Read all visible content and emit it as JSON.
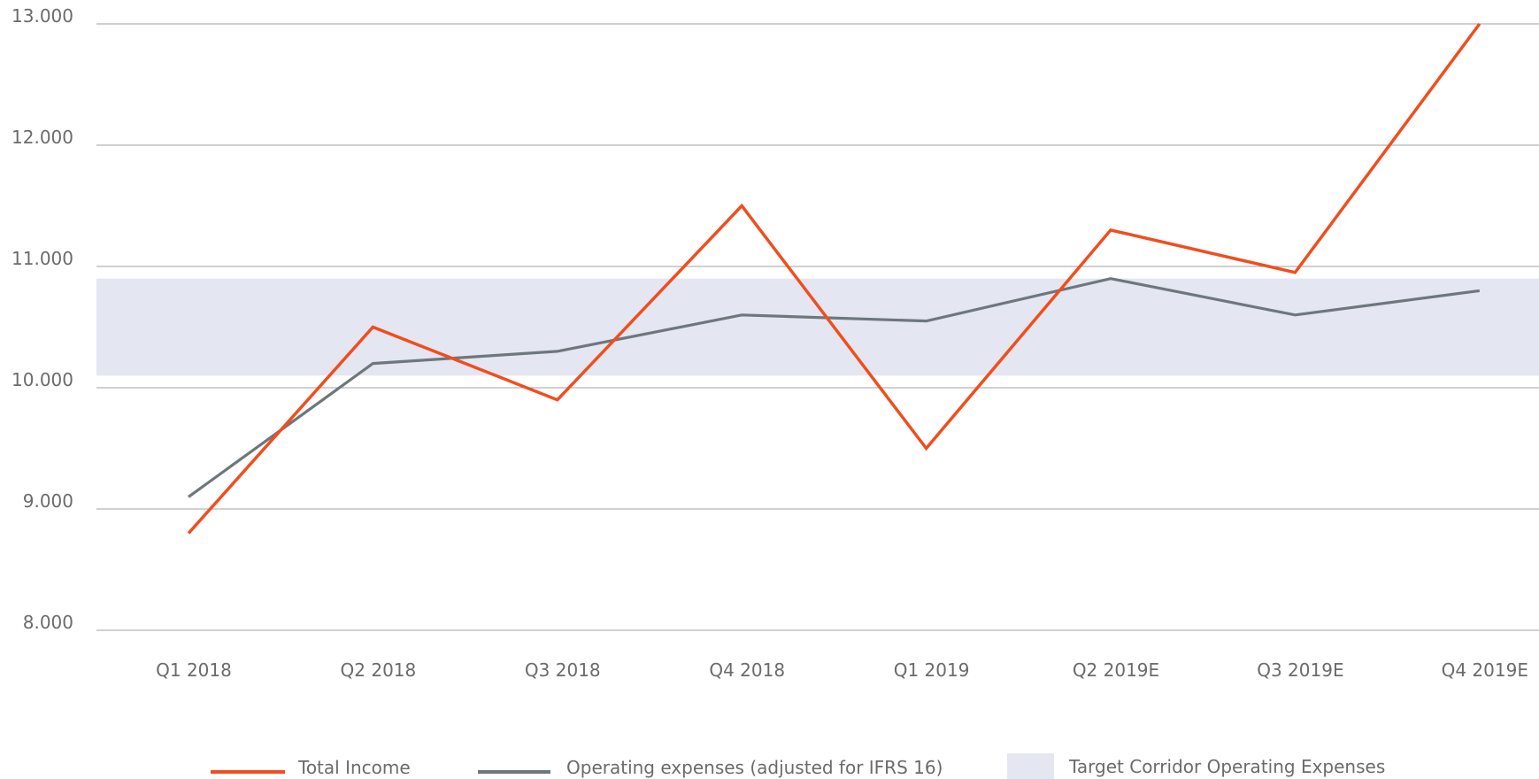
{
  "chart_data": {
    "type": "line",
    "categories": [
      "Q1 2018",
      "Q2 2018",
      "Q3 2018",
      "Q4 2018",
      "Q1 2019",
      "Q2 2019E",
      "Q3 2019E",
      "Q4 2019E"
    ],
    "series": [
      {
        "name": "Total Income",
        "color": "#f04e1e",
        "values": [
          8800,
          10500,
          9900,
          11500,
          9500,
          11300,
          10950,
          13000
        ]
      },
      {
        "name": "Operating expenses (adjusted for IFRS 16)",
        "color": "#6d777c",
        "values": [
          9100,
          10200,
          10300,
          10600,
          10550,
          10900,
          10600,
          10800
        ]
      }
    ],
    "band": {
      "name": "Target Corridor Operating Expenses",
      "color": "#e4e6f1",
      "range": [
        10100,
        10900
      ]
    },
    "ylim": [
      8000,
      13000
    ],
    "yticks": [
      {
        "value": 8000,
        "label": "8.000"
      },
      {
        "value": 9000,
        "label": "9.000"
      },
      {
        "value": 10000,
        "label": "10.000"
      },
      {
        "value": 11000,
        "label": "11.000"
      },
      {
        "value": 12000,
        "label": "12.000"
      },
      {
        "value": 13000,
        "label": "13.000"
      }
    ],
    "grid": true
  }
}
